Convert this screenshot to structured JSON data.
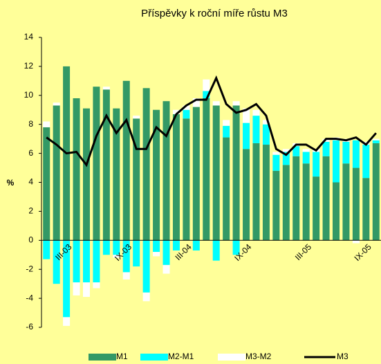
{
  "chart_data": {
    "type": "bar",
    "title": "Příspěvky k roční míře růstu M3",
    "y_label": "%",
    "categories": [
      null,
      null,
      "III-03",
      null,
      null,
      null,
      null,
      null,
      "IX-03",
      null,
      null,
      null,
      null,
      null,
      "III-04",
      null,
      null,
      null,
      null,
      null,
      "IX-04",
      null,
      null,
      null,
      null,
      null,
      "III-05",
      null,
      null,
      null,
      null,
      null,
      "IX-05",
      null
    ],
    "series": [
      {
        "name": "M1",
        "type": "bar",
        "color": "#339966",
        "values": [
          7.8,
          9.3,
          12.0,
          9.8,
          9.1,
          10.6,
          10.4,
          9.1,
          11.0,
          8.4,
          10.5,
          9.0,
          9.6,
          8.7,
          8.4,
          9.2,
          9.8,
          9.3,
          7.1,
          9.3,
          6.3,
          6.7,
          6.6,
          4.8,
          5.2,
          5.8,
          5.3,
          4.4,
          5.8,
          4.0,
          5.3,
          5.0,
          4.3,
          6.7
        ]
      },
      {
        "name": "M2-M1",
        "type": "bar",
        "color": "#00ffff",
        "values": [
          -1.3,
          -3.0,
          -5.3,
          -2.9,
          -2.9,
          -2.9,
          -1.0,
          -1.0,
          -2.2,
          -1.8,
          -3.6,
          -0.8,
          -1.7,
          -0.7,
          0.6,
          -0.7,
          0.5,
          -1.4,
          0.8,
          -1.0,
          1.8,
          1.9,
          1.4,
          1.1,
          0.9,
          0.7,
          0.8,
          1.7,
          1.0,
          2.9,
          1.5,
          1.9,
          2.3,
          0.2
        ]
      },
      {
        "name": "M3-M2",
        "type": "bar",
        "color": "#ffffff",
        "values": [
          0.4,
          0.2,
          -0.6,
          -0.9,
          -1.0,
          -0.4,
          0.2,
          -0.2,
          -0.5,
          0.2,
          -0.6,
          -0.3,
          -0.6,
          0.3,
          0.3,
          0.6,
          0.8,
          0.3,
          0.4,
          0.3,
          1.0,
          0.4,
          0.3,
          0.2,
          0.2,
          0.2,
          0.2,
          0.2,
          0.2,
          0.2,
          0.2,
          -0.2,
          0.2,
          0.1
        ]
      },
      {
        "name": "M3",
        "type": "line",
        "color": "#000000",
        "values": [
          7.1,
          6.6,
          6.0,
          6.1,
          5.2,
          7.2,
          8.6,
          7.4,
          8.3,
          6.3,
          6.3,
          7.8,
          7.2,
          8.7,
          9.3,
          9.7,
          9.7,
          11.2,
          9.4,
          8.8,
          9.0,
          9.4,
          8.6,
          6.3,
          5.9,
          6.6,
          6.6,
          6.2,
          7.0,
          7.0,
          6.9,
          7.1,
          6.6,
          7.4
        ]
      }
    ],
    "ylim": [
      -6,
      14
    ],
    "yticks": [
      -6,
      -4,
      -2,
      0,
      2,
      4,
      6,
      8,
      10,
      12,
      14
    ]
  }
}
